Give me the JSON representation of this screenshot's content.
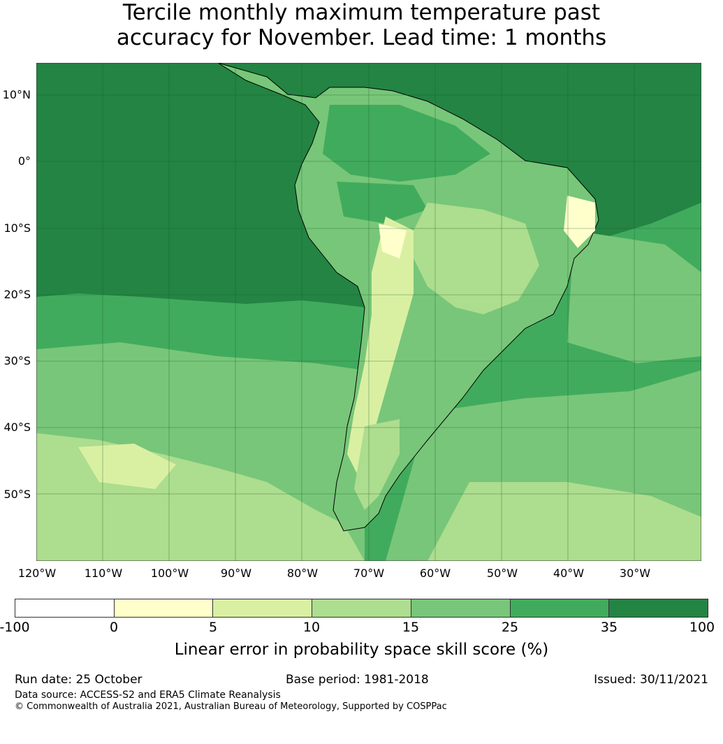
{
  "title": {
    "line1": "Tercile monthly maximum temperature past",
    "line2": "accuracy for November. Lead time: 1 months"
  },
  "map": {
    "region": "South America",
    "lat_labels": [
      "10°N",
      "0°",
      "10°S",
      "20°S",
      "30°S",
      "40°S",
      "50°S"
    ],
    "lon_labels": [
      "120°W",
      "110°W",
      "100°W",
      "90°W",
      "80°W",
      "70°W",
      "60°W",
      "50°W",
      "40°W",
      "30°W"
    ],
    "lat_range": [
      -60,
      15
    ],
    "lon_range": [
      -120,
      -20
    ],
    "gridlines": true
  },
  "colorbar": {
    "ticks": [
      "-100",
      "0",
      "5",
      "10",
      "15",
      "25",
      "35",
      "100"
    ],
    "colors": [
      "#ffffff",
      "#ffffcc",
      "#d9f0a3",
      "#addd8e",
      "#78c679",
      "#41ab5d",
      "#238443"
    ],
    "label": "Linear error in probability space skill score (%)"
  },
  "footer": {
    "run_date": "Run date: 25 October",
    "base_period": "Base period: 1981-2018",
    "issued": "Issued: 30/11/2021",
    "data_source": "Data source: ACCESS-S2 and ERA5 Climate Reanalysis",
    "copyright": "© Commonwealth of Australia 2021, Australian Bureau of Meteorology, Supported by COSPPac"
  }
}
